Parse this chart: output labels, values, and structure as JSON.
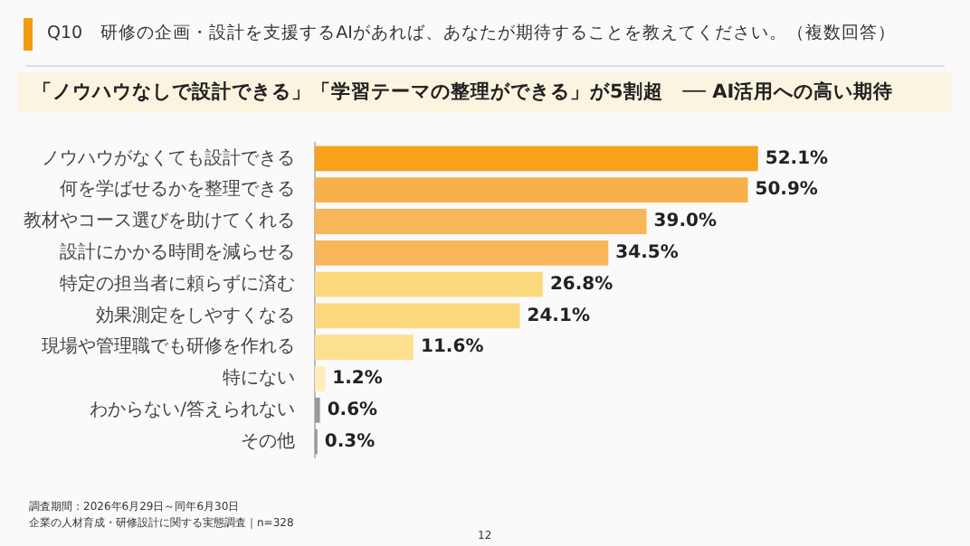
{
  "chart_data": {
    "type": "bar",
    "orientation": "horizontal",
    "title": "Q10　研修の企画・設計を支援するAIがあれば、あなたが期待することを教えてください。（複数回答）",
    "subtitle": "「ノウハウなしで設計できる」「学習テーマの整理ができる」が5割超　── AI活用への高い期待",
    "categories": [
      "ノウハウがなくても設計できる",
      "何を学ばせるかを整理できる",
      "教材やコース選びを助けてくれる",
      "設計にかかる時間を減らせる",
      "特定の担当者に頼らずに済む",
      "効果測定をしやすくなる",
      "現場や管理職でも研修を作れる",
      "特にない",
      "わからない/答えられない",
      "その他"
    ],
    "values": [
      52.1,
      50.9,
      39.0,
      34.5,
      26.8,
      24.1,
      11.6,
      1.2,
      0.6,
      0.3
    ],
    "colors": [
      "#f7a11c",
      "#f8b04a",
      "#f9b55a",
      "#f9b55a",
      "#fcd97f",
      "#fcd97f",
      "#fde08f",
      "#feedbb",
      "#999999",
      "#999999"
    ],
    "value_labels": [
      "52.1%",
      "50.9%",
      "39.0%",
      "34.5%",
      "26.8%",
      "24.1%",
      "11.6%",
      "1.2%",
      "0.6%",
      "0.3%"
    ],
    "tick_labels": "y",
    "legend": false,
    "annotations": [
      "調査期間：2026年6月29日～同年6月30日",
      "企業の人材育成・研修設計に関する実態調査｜n=328",
      "12"
    ]
  }
}
